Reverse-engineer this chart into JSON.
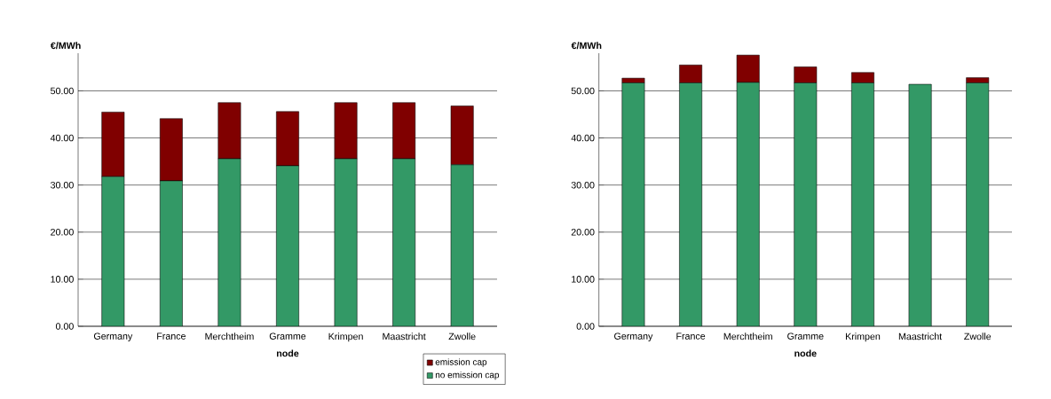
{
  "chart_data": [
    {
      "type": "bar",
      "stacked": true,
      "ylabel": "€/MWh",
      "xlabel": "node",
      "categories": [
        "Germany",
        "France",
        "Merchtheim",
        "Gramme",
        "Krimpen",
        "Maastricht",
        "Zwolle"
      ],
      "series": [
        {
          "name": "no emission cap",
          "color": "#339966",
          "values": [
            31.8,
            30.9,
            35.6,
            34.1,
            35.6,
            35.6,
            34.3
          ]
        },
        {
          "name": "emission cap",
          "color": "#800000",
          "values": [
            13.7,
            13.2,
            11.9,
            11.5,
            11.9,
            11.9,
            12.5
          ]
        }
      ],
      "ylim": [
        0,
        58
      ],
      "yticks": [
        {
          "value": 0,
          "label": "0.00"
        },
        {
          "value": 10,
          "label": "10.00"
        },
        {
          "value": 20,
          "label": "20.00"
        },
        {
          "value": 30,
          "label": "30.00"
        },
        {
          "value": 40,
          "label": "40.00"
        },
        {
          "value": 50,
          "label": "50.00"
        }
      ],
      "grid": "y",
      "legend": "bottom right"
    },
    {
      "type": "bar",
      "stacked": true,
      "ylabel": "€/MWh",
      "xlabel": "node",
      "categories": [
        "Germany",
        "France",
        "Merchtheim",
        "Gramme",
        "Krimpen",
        "Maastricht",
        "Zwolle"
      ],
      "series": [
        {
          "color": "#339966",
          "values": [
            51.7,
            51.7,
            51.8,
            51.7,
            51.7,
            51.4,
            51.7
          ]
        },
        {
          "color": "#800000",
          "values": [
            1.0,
            3.8,
            5.8,
            3.4,
            2.2,
            0,
            1.1
          ]
        }
      ],
      "ylim": [
        0,
        58
      ],
      "yticks": [
        {
          "value": 0,
          "label": "0.00"
        },
        {
          "value": 10,
          "label": "10.00"
        },
        {
          "value": 20,
          "label": "20.00"
        },
        {
          "value": 30,
          "label": "30.00"
        },
        {
          "value": 40,
          "label": "40.00"
        },
        {
          "value": 50,
          "label": "50.00"
        }
      ],
      "grid": "y"
    }
  ]
}
